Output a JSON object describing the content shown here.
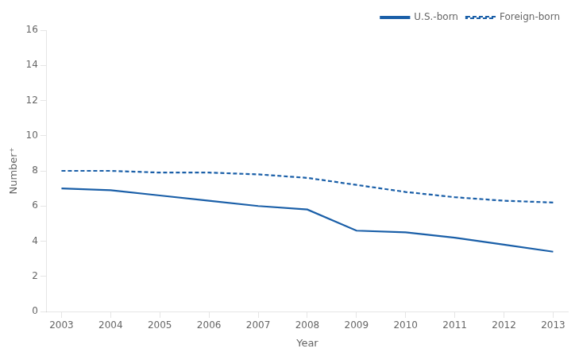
{
  "chart_data": {
    "type": "line",
    "xlabel": "Year",
    "ylabel": "Number⁺",
    "x": [
      2003,
      2004,
      2005,
      2006,
      2007,
      2008,
      2009,
      2010,
      2011,
      2012,
      2013
    ],
    "series": [
      {
        "name": "U.S.-born",
        "color": "#1a5fa8",
        "line_style": "solid",
        "values": [
          7.0,
          6.9,
          6.6,
          6.3,
          6.0,
          5.8,
          4.6,
          4.5,
          4.2,
          3.8,
          3.4
        ]
      },
      {
        "name": "Foreign-born",
        "color": "#1a5fa8",
        "line_style": "dashed",
        "values": [
          8.0,
          8.0,
          7.9,
          7.9,
          7.8,
          7.6,
          7.2,
          6.8,
          6.5,
          6.3,
          6.2
        ]
      }
    ],
    "xlim": [
      2002.7,
      2013.3
    ],
    "xticks": [
      2003,
      2004,
      2005,
      2006,
      2007,
      2008,
      2009,
      2010,
      2011,
      2012,
      2013
    ],
    "ylim": [
      0,
      16
    ],
    "yticks": [
      0,
      2,
      4,
      6,
      8,
      10,
      12,
      14,
      16
    ],
    "grid": false,
    "legend": "upper right"
  }
}
